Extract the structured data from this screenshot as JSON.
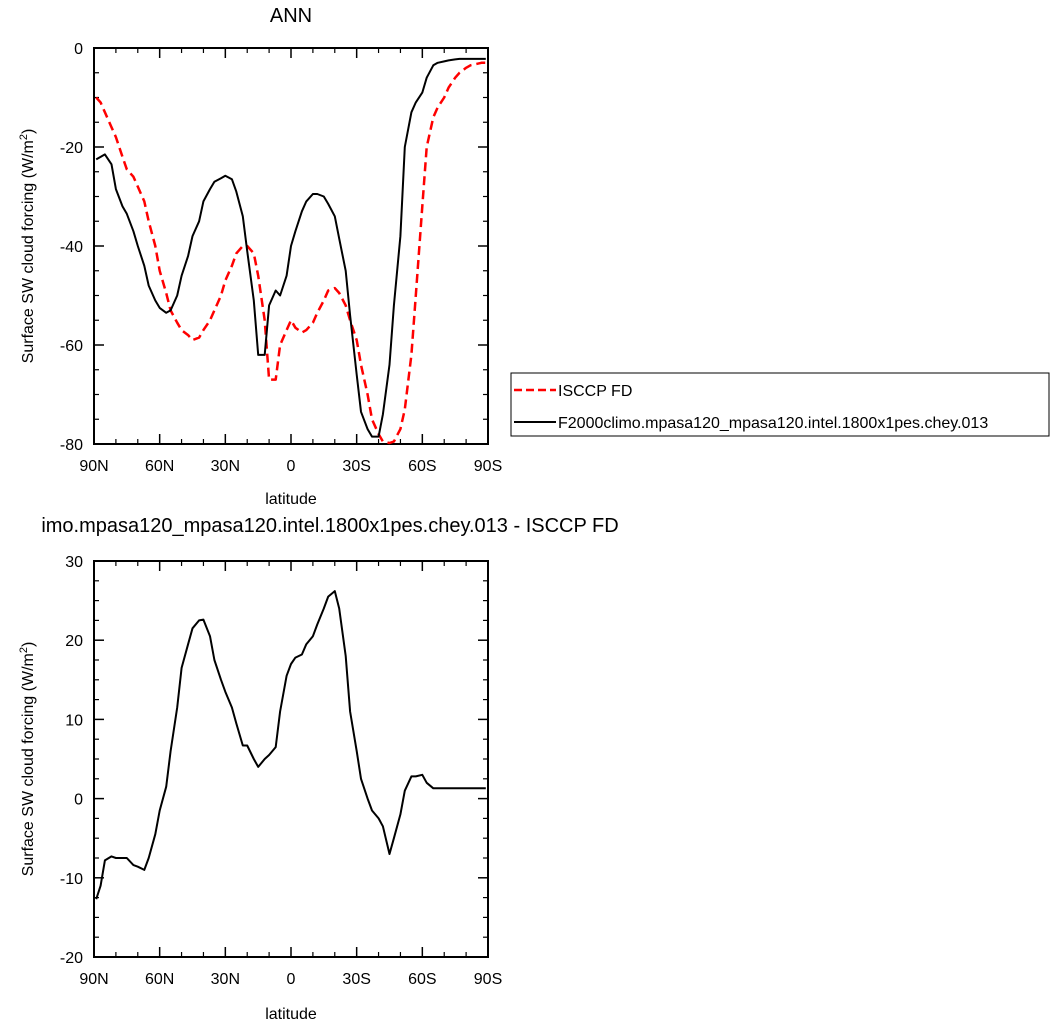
{
  "chart_data": [
    {
      "type": "line",
      "title": "ANN",
      "xlabel": "latitude",
      "ylabel": "Surface SW cloud forcing (W/m",
      "ylabel_sup": "2",
      "ylabel_end": ")",
      "xlim": [
        90,
        -90
      ],
      "ylim": [
        -80,
        0
      ],
      "xticks": [
        {
          "value": 90,
          "label": "90N"
        },
        {
          "value": 60,
          "label": "60N"
        },
        {
          "value": 30,
          "label": "30N"
        },
        {
          "value": 0,
          "label": "0"
        },
        {
          "value": -30,
          "label": "30S"
        },
        {
          "value": -60,
          "label": "60S"
        },
        {
          "value": -90,
          "label": "90S"
        }
      ],
      "yticks": [
        {
          "value": 0,
          "label": "0"
        },
        {
          "value": -20,
          "label": "-20"
        },
        {
          "value": -40,
          "label": "-40"
        },
        {
          "value": -60,
          "label": "-60"
        },
        {
          "value": -80,
          "label": "-80"
        }
      ],
      "legend_position": "right",
      "series": [
        {
          "name": "ISCCP FD",
          "color": "#ff0000",
          "dash": true,
          "x": [
            89,
            87,
            85,
            82,
            80,
            77,
            75,
            72,
            70,
            67,
            65,
            62,
            60,
            57,
            55,
            52,
            50,
            47,
            45,
            42,
            40,
            37,
            35,
            32,
            30,
            27,
            25,
            22,
            20,
            17,
            15,
            12,
            10,
            7,
            5,
            2,
            0,
            -2,
            -5,
            -7,
            -10,
            -12,
            -15,
            -17,
            -20,
            -22,
            -25,
            -27,
            -30,
            -32,
            -35,
            -37,
            -40,
            -42,
            -45,
            -47,
            -50,
            -52,
            -55,
            -57,
            -60,
            -62,
            -65,
            -67,
            -70,
            -72,
            -75,
            -77,
            -80,
            -82,
            -85,
            -87,
            -89
          ],
          "y": [
            -10,
            -11,
            -13,
            -16,
            -18,
            -22,
            -24.5,
            -26,
            -28,
            -31,
            -35,
            -40,
            -45,
            -49.5,
            -53,
            -55.5,
            -57,
            -58,
            -59,
            -58.5,
            -57,
            -55,
            -53,
            -50,
            -47,
            -44,
            -41.5,
            -40,
            -40,
            -41.5,
            -46,
            -55,
            -67,
            -67,
            -60,
            -57,
            -55,
            -56.5,
            -57.5,
            -57,
            -55.5,
            -53.5,
            -51,
            -49,
            -48.5,
            -49.5,
            -52,
            -55,
            -59,
            -64,
            -70,
            -75,
            -78,
            -79.5,
            -79.8,
            -79.5,
            -77,
            -73,
            -62,
            -50,
            -32,
            -20,
            -14,
            -12,
            -10,
            -8,
            -6,
            -5,
            -4,
            -3.5,
            -3.2,
            -3,
            -3
          ]
        },
        {
          "name": "F2000climo.mpasa120_mpasa120.intel.1800x1pes.chey.013",
          "color": "#000000",
          "dash": false,
          "x": [
            89,
            87,
            85,
            82,
            80,
            77,
            75,
            72,
            70,
            67,
            65,
            62,
            60,
            57,
            55,
            52,
            50,
            47,
            45,
            42,
            40,
            37,
            35,
            32,
            30,
            27,
            25,
            22,
            20,
            17,
            15,
            12,
            10,
            7,
            5,
            2,
            0,
            -2,
            -5,
            -7,
            -10,
            -12,
            -15,
            -17,
            -20,
            -22,
            -25,
            -27,
            -30,
            -32,
            -35,
            -37,
            -40,
            -42,
            -45,
            -47,
            -50,
            -52,
            -55,
            -57,
            -60,
            -62,
            -65,
            -67,
            -70,
            -72,
            -75,
            -77,
            -80,
            -82,
            -85,
            -87,
            -89
          ],
          "y": [
            -22.5,
            -22,
            -21.5,
            -23.5,
            -28.5,
            -32,
            -33.5,
            -37,
            -40,
            -44,
            -48,
            -51,
            -52.5,
            -53.5,
            -53,
            -50,
            -46,
            -42,
            -38,
            -35,
            -31,
            -28.5,
            -27,
            -26.3,
            -25.8,
            -26.5,
            -29,
            -34,
            -41,
            -51,
            -62,
            -62,
            -52,
            -49,
            -50,
            -46,
            -40,
            -37,
            -33,
            -31,
            -29.5,
            -29.5,
            -30,
            -31.5,
            -34,
            -38.5,
            -45,
            -54,
            -66,
            -73.5,
            -77,
            -78.5,
            -78.5,
            -74,
            -64,
            -52,
            -38,
            -20,
            -13,
            -11,
            -9,
            -6,
            -3.5,
            -3,
            -2.7,
            -2.5,
            -2.3,
            -2.2,
            -2.2,
            -2.2,
            -2.2,
            -2.2,
            -2.2
          ]
        }
      ]
    },
    {
      "type": "line",
      "title": "imo.mpasa120_mpasa120.intel.1800x1pes.chey.013 - ISCCP FD",
      "xlabel": "latitude",
      "ylabel": "Surface SW cloud forcing (W/m",
      "ylabel_sup": "2",
      "ylabel_end": ")",
      "xlim": [
        90,
        -90
      ],
      "ylim": [
        -20,
        30
      ],
      "xticks": [
        {
          "value": 90,
          "label": "90N"
        },
        {
          "value": 60,
          "label": "60N"
        },
        {
          "value": 30,
          "label": "30N"
        },
        {
          "value": 0,
          "label": "0"
        },
        {
          "value": -30,
          "label": "30S"
        },
        {
          "value": -60,
          "label": "60S"
        },
        {
          "value": -90,
          "label": "90S"
        }
      ],
      "yticks": [
        {
          "value": 30,
          "label": "30"
        },
        {
          "value": 20,
          "label": "20"
        },
        {
          "value": 10,
          "label": "10"
        },
        {
          "value": 0,
          "label": "0"
        },
        {
          "value": -10,
          "label": "-10"
        },
        {
          "value": -20,
          "label": "-20"
        }
      ],
      "series": [
        {
          "name": "",
          "color": "#000000",
          "dash": false,
          "x": [
            89,
            87,
            85,
            82,
            80,
            77,
            75,
            72,
            70,
            67,
            65,
            62,
            60,
            57,
            55,
            52,
            50,
            47,
            45,
            42,
            40,
            37,
            35,
            32,
            30,
            27,
            25,
            22,
            20,
            17,
            15,
            12,
            10,
            7,
            5,
            2,
            0,
            -2,
            -5,
            -7,
            -10,
            -12,
            -15,
            -17,
            -20,
            -22,
            -25,
            -27,
            -30,
            -32,
            -35,
            -37,
            -40,
            -42,
            -45,
            -47,
            -50,
            -52,
            -55,
            -57,
            -60,
            -62,
            -65,
            -67,
            -70,
            -72,
            -75,
            -77,
            -80,
            -82,
            -85,
            -87,
            -89
          ],
          "y": [
            -12.7,
            -11,
            -7.8,
            -7.3,
            -7.5,
            -7.5,
            -7.5,
            -8.4,
            -8.6,
            -9,
            -7.5,
            -4.5,
            -1.5,
            1.5,
            6,
            11.5,
            16.5,
            19.5,
            21.5,
            22.5,
            22.6,
            20.5,
            17.5,
            15,
            13.5,
            11.5,
            9.5,
            6.7,
            6.7,
            5,
            4,
            5,
            5.5,
            6.5,
            11,
            15.5,
            17,
            17.8,
            18.2,
            19.5,
            20.5,
            22,
            24,
            25.5,
            26.2,
            24,
            18,
            11,
            6,
            2.5,
            0,
            -1.5,
            -2.5,
            -3.5,
            -7,
            -5,
            -2,
            1,
            2.8,
            2.8,
            3,
            2,
            1.3,
            1.3,
            1.3,
            1.3,
            1.3,
            1.3,
            1.3,
            1.3,
            1.3,
            1.3,
            1.3
          ]
        }
      ]
    }
  ]
}
